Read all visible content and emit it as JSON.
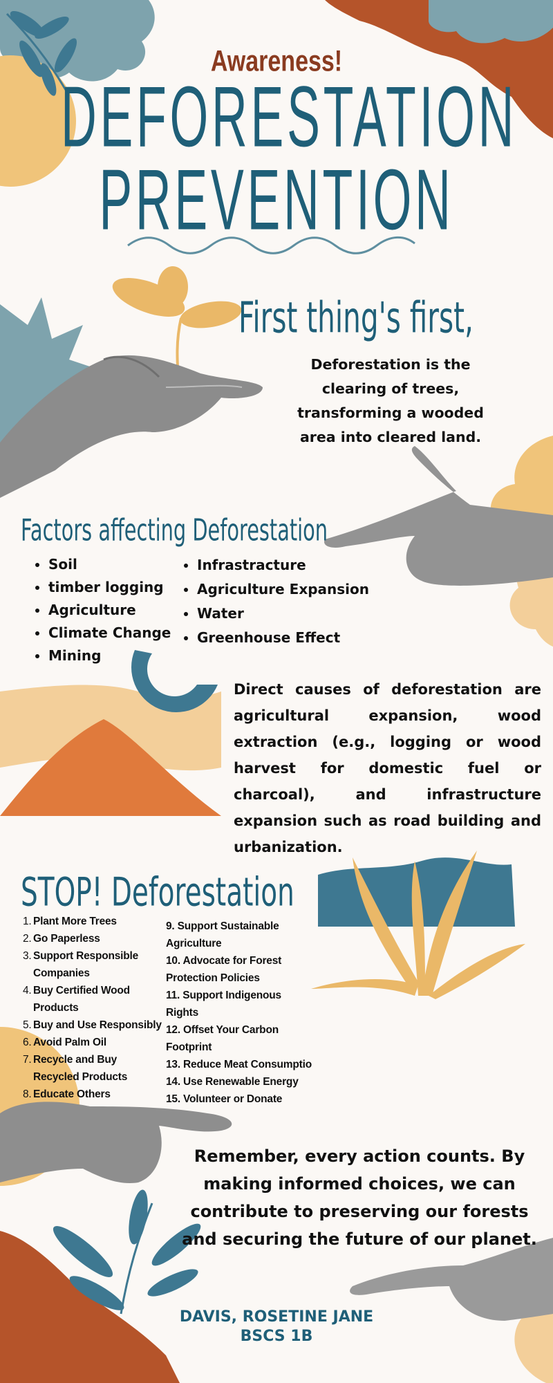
{
  "header": {
    "kicker": "Awareness!",
    "title_line1": "DEFORESTATION",
    "title_line2": "PREVENTION"
  },
  "intro": {
    "heading": "First thing's first,",
    "definition": "Deforestation is the clearing of trees, transforming a wooded area into  cleared land."
  },
  "factors": {
    "heading": "Factors affecting Deforestation",
    "left": [
      "Soil",
      "timber logging",
      "Agriculture",
      "Climate Change",
      "Mining"
    ],
    "right": [
      "Infrastracture",
      "Agriculture Expansion",
      "Water",
      "Greenhouse Effect"
    ]
  },
  "causes": {
    "text": "Direct causes of deforestation are agricultural expansion, wood extraction (e.g., logging or wood harvest for domestic fuel or charcoal), and infrastructure expansion such as road building and urbanization."
  },
  "stop": {
    "heading": "STOP! Deforestation",
    "left": [
      {
        "num": "1.",
        "text": "Plant More Trees"
      },
      {
        "num": "2.",
        "text": "Go Paperless"
      },
      {
        "num": "3.",
        "text": "Support Responsible Companies"
      },
      {
        "num": "4.",
        "text": "Buy Certified Wood Products"
      },
      {
        "num": "5.",
        "text": "Buy and Use Responsibly"
      },
      {
        "num": "6.",
        "text": "Avoid Palm Oil"
      },
      {
        "num": "7.",
        "text": "Recycle and Buy Recycled Products"
      },
      {
        "num": "8.",
        "text": "Educate Others"
      }
    ],
    "right": [
      "9. Support Sustainable Agriculture",
      "10. Advocate for Forest Protection Policies",
      "11. Support Indigenous Rights",
      "12. Offset Your Carbon Footprint",
      "13. Reduce Meat Consumptio",
      "14. Use Renewable Energy",
      "15. Volunteer or Donate"
    ]
  },
  "closing": {
    "text": "Remember, every action counts. By making informed choices, we can contribute to preserving our forests and securing the future of our planet."
  },
  "author": {
    "name": "DAVIS, ROSETINE JANE",
    "section": "BSCS 1B"
  },
  "colors": {
    "teal": "#1f5f78",
    "blue_gray": "#5f8fa0",
    "rust": "#b5542a",
    "orange": "#e07a3c",
    "sand": "#f0c47a",
    "peach": "#f3cf9a",
    "background": "#fbf8f5"
  },
  "decor_icons": [
    "leaf-branch-icon",
    "open-palm-hand-image",
    "sprout-icon",
    "pointing-hand-image",
    "starburst-shape",
    "hill-shape",
    "half-ring-shape",
    "wave-shape",
    "grass-plant-icon",
    "reaching-hand-image",
    "pointing-hand-right-image"
  ]
}
